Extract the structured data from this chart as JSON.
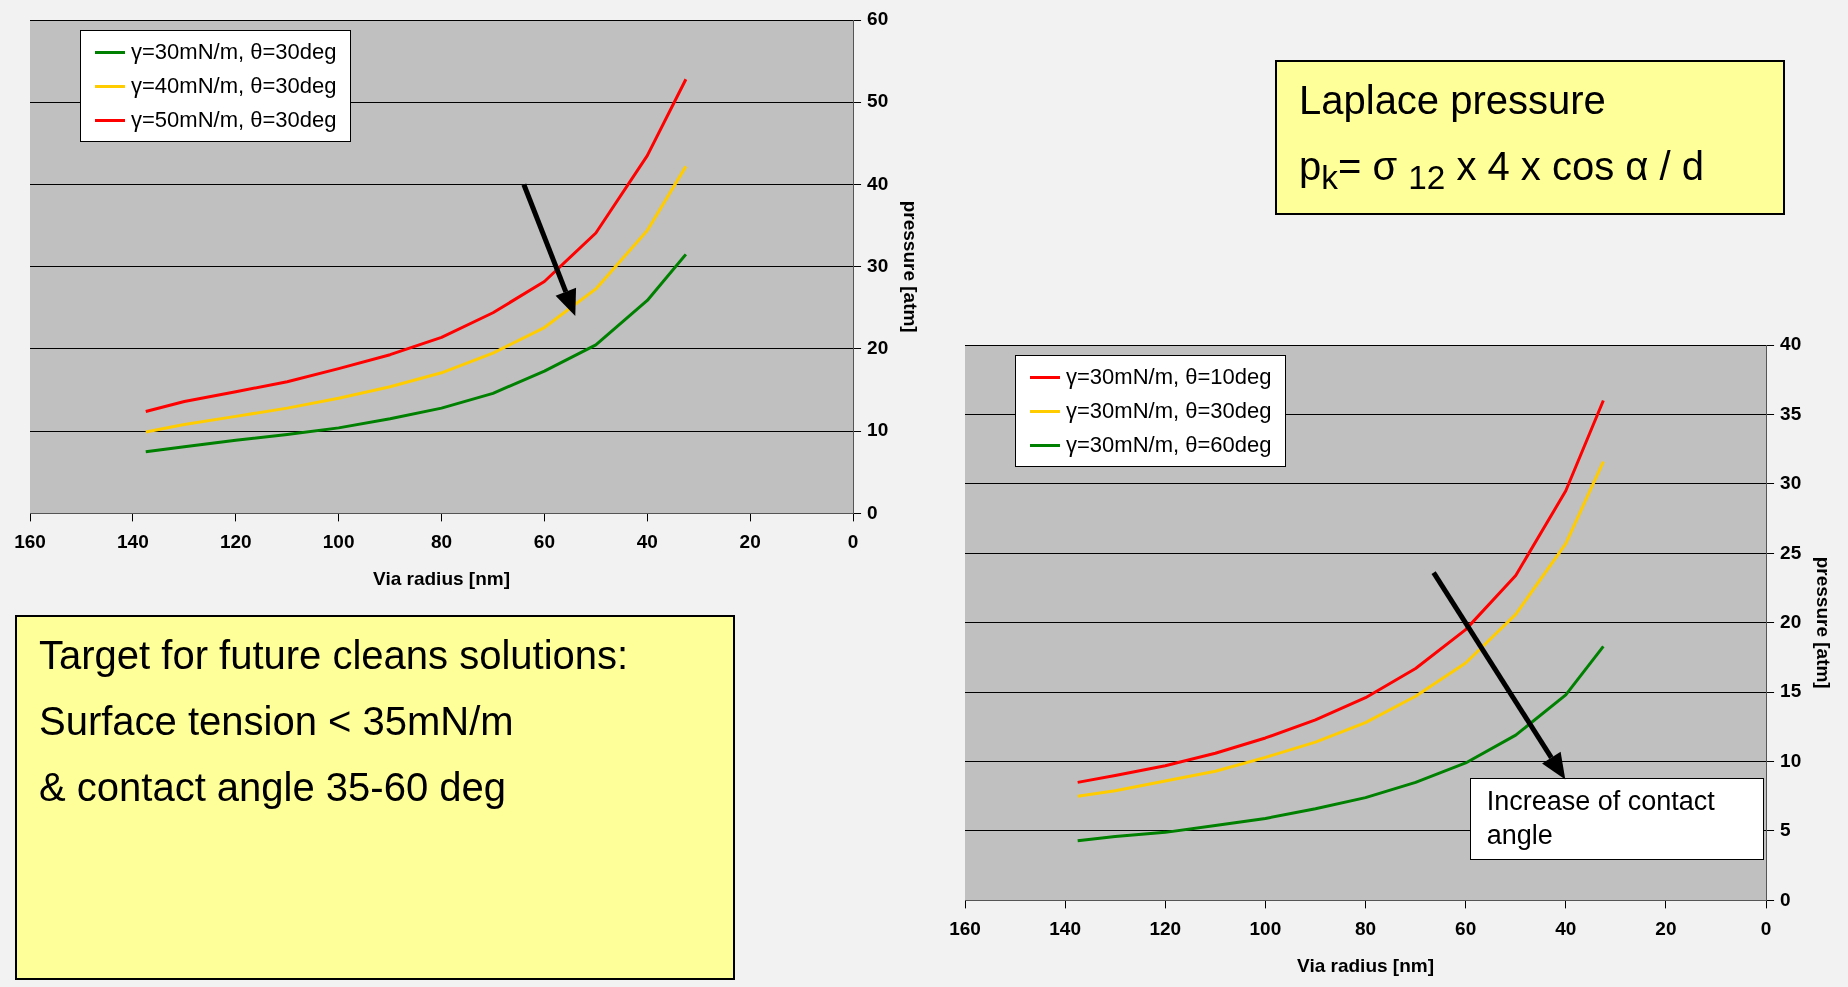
{
  "chart_data": [
    {
      "type": "line",
      "xlabel": "Via radius [nm]",
      "ylabel": "pressure [atm]",
      "x": [
        137.5,
        130,
        120,
        110,
        100,
        90,
        80,
        70,
        60,
        50,
        40,
        32.5
      ],
      "series": [
        {
          "name": "γ=30mN/m, θ=30deg",
          "color": "#008000",
          "values": [
            7.5,
            8.1,
            8.9,
            9.6,
            10.4,
            11.5,
            12.8,
            14.6,
            17.3,
            20.5,
            25.9,
            31.5
          ]
        },
        {
          "name": "γ=40mN/m, θ=30deg",
          "color": "#ffcc00",
          "values": [
            9.9,
            10.8,
            11.8,
            12.8,
            14.0,
            15.4,
            17.1,
            19.5,
            22.6,
            27.3,
            34.4,
            42.2
          ]
        },
        {
          "name": "γ=50mN/m, θ=30deg",
          "color": "#ff0000",
          "values": [
            12.4,
            13.6,
            14.8,
            16.0,
            17.6,
            19.3,
            21.4,
            24.4,
            28.2,
            34.1,
            43.5,
            52.8
          ]
        }
      ],
      "xlim": [
        160,
        0
      ],
      "xticks": [
        160,
        140,
        120,
        100,
        80,
        60,
        40,
        20,
        0
      ],
      "ylim": [
        0,
        60
      ],
      "yticks": [
        0,
        10,
        20,
        30,
        40,
        50,
        60
      ],
      "grid": "y",
      "legend": "top left",
      "marker": "none",
      "line_style": "solid"
    },
    {
      "type": "line",
      "xlabel": "Via radius [nm]",
      "ylabel": "pressure [atm]",
      "x": [
        137.5,
        130,
        120,
        110,
        100,
        90,
        80,
        70,
        60,
        50,
        40,
        32.5
      ],
      "series": [
        {
          "name": "γ=30mN/m, θ=10deg",
          "color": "#ff0000",
          "values": [
            8.5,
            9.0,
            9.7,
            10.6,
            11.7,
            13.0,
            14.6,
            16.7,
            19.5,
            23.4,
            29.5,
            36.0
          ]
        },
        {
          "name": "γ=30mN/m, θ=30deg",
          "color": "#ffcc00",
          "values": [
            7.5,
            7.9,
            8.6,
            9.3,
            10.3,
            11.4,
            12.8,
            14.7,
            17.1,
            20.6,
            25.7,
            31.6
          ]
        },
        {
          "name": "γ=30mN/m, θ=60deg",
          "color": "#008000",
          "values": [
            4.3,
            4.6,
            4.9,
            5.4,
            5.9,
            6.6,
            7.4,
            8.5,
            9.9,
            11.9,
            14.8,
            18.3
          ]
        }
      ],
      "xlim": [
        160,
        0
      ],
      "xticks": [
        160,
        140,
        120,
        100,
        80,
        60,
        40,
        20,
        0
      ],
      "ylim": [
        0,
        40
      ],
      "yticks": [
        0,
        5,
        10,
        15,
        20,
        25,
        30,
        35,
        40
      ],
      "grid": "y",
      "legend": "top left",
      "marker": "none",
      "line_style": "solid",
      "annotations": [
        "Increase of contact angle"
      ]
    },
    {
      "type": "other",
      "annotations": [
        "Laplace pressure",
        "p$_{k}$= σ $_{12}$ x 4 x cos α / d"
      ]
    },
    {
      "type": "other",
      "annotations": [
        "Target for future cleans solutions:",
        "Surface tension < 35mN/m",
        "& contact angle 35-60 deg"
      ]
    }
  ]
}
